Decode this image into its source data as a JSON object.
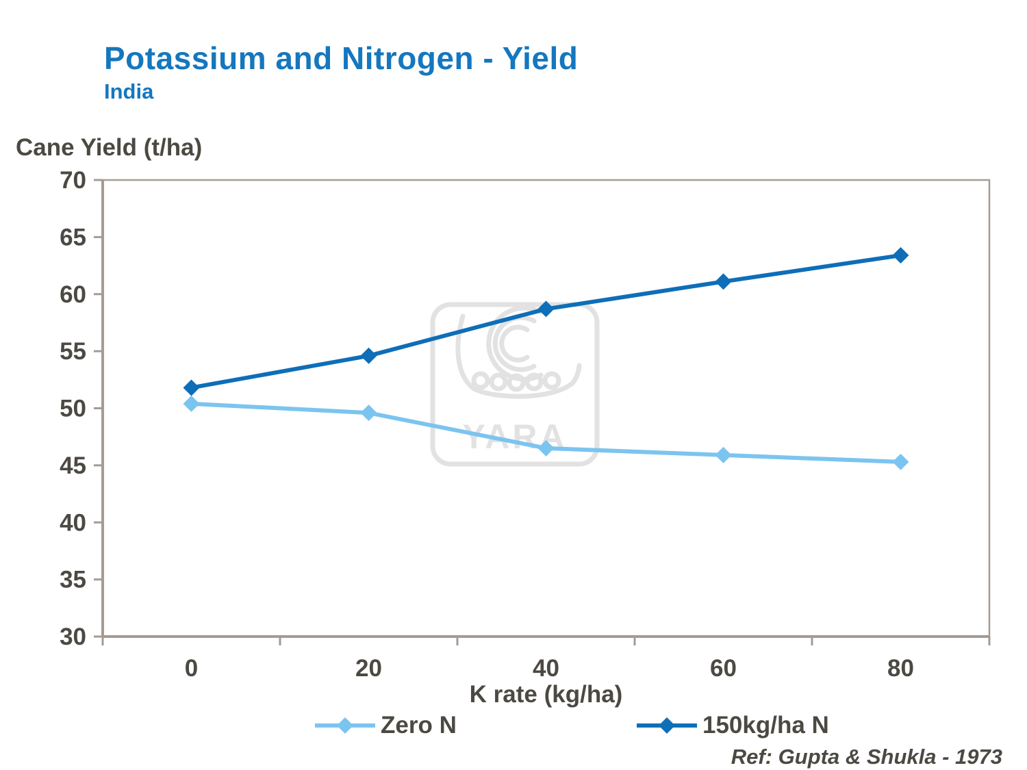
{
  "header": {
    "title": "Potassium and Nitrogen - Yield",
    "subtitle": "India"
  },
  "chart_data": {
    "type": "line",
    "title": "Potassium and Nitrogen - Yield (India)",
    "ylabel": "Cane Yield (t/ha)",
    "xlabel": "K rate (kg/ha)",
    "categories": [
      "0",
      "20",
      "40",
      "60",
      "80"
    ],
    "ylim": [
      30,
      70
    ],
    "ytick_step": 5,
    "grid": false,
    "legend_position": "bottom",
    "series": [
      {
        "name": "Zero N",
        "color": "#7CC4F0",
        "values": [
          50.4,
          49.6,
          46.5,
          45.9,
          45.3
        ]
      },
      {
        "name": "150kg/ha N",
        "color": "#0E6EB8",
        "values": [
          51.8,
          54.6,
          58.7,
          61.1,
          63.4
        ]
      }
    ]
  },
  "watermark": {
    "text": "YARA"
  },
  "footer": {
    "ref": "Ref:  Gupta & Shukla - 1973"
  },
  "colors": {
    "title_blue": "#1577BE",
    "axis_text": "#4C4943",
    "frame": "#A59B92",
    "watermark": "#E2E2E2",
    "series_light": "#7CC4F0",
    "series_dark": "#0E6EB8"
  }
}
